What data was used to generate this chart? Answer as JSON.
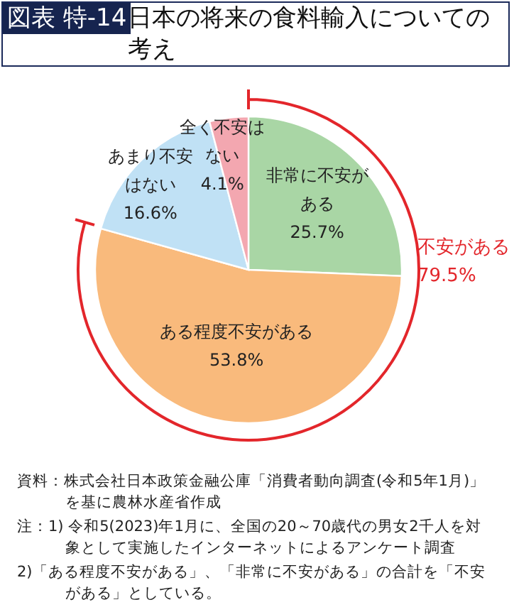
{
  "chart_data": {
    "type": "pie",
    "title": "日本の将来の食料輸入についての考え",
    "categories": [
      "非常に不安がある",
      "ある程度不安がある",
      "あまり不安はない",
      "全く不安はない"
    ],
    "values": [
      25.7,
      53.8,
      16.6,
      4.1
    ],
    "colors": [
      "#a9d6a5",
      "#f9ba7c",
      "#c0e1f5",
      "#f3a7b0"
    ],
    "value_labels": [
      "25.7%",
      "53.8%",
      "16.6%",
      "4.1%"
    ],
    "annotations": [
      "図表 特-14",
      "不安がある 79.5%",
      "資料：株式会社日本政策金融公庫「消費者動向調査(令和5年1月)」を基に農林水産省作成",
      "注：1) 令和5(2023)年1月に、全国の20～70歳代の男女2千人を対象として実施したインターネットによるアンケート調査",
      "2)「ある程度不安がある」、「非常に不安がある」の合計を「不安がある」としている。"
    ]
  }
}
